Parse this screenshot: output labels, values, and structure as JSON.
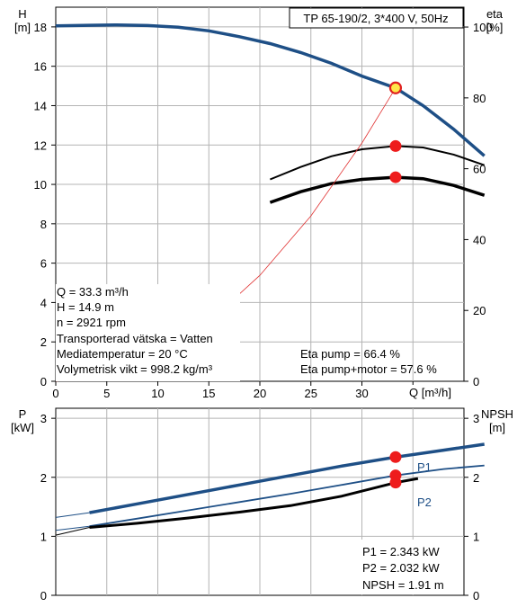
{
  "chart_data": [
    {
      "type": "line",
      "title": "TP 65-190/2, 3*400 V, 50Hz",
      "xlabel": "Q [m³/h]",
      "ylabel": "H",
      "ylabel_unit": "[m]",
      "y2label": "eta",
      "y2label_unit": "[%]",
      "xlim": [
        0,
        40
      ],
      "ylim": [
        0,
        19
      ],
      "y2lim": [
        0,
        100
      ],
      "x_ticks": [
        0,
        5,
        10,
        15,
        20,
        25,
        30,
        35
      ],
      "y_ticks": [
        0,
        2,
        4,
        6,
        8,
        10,
        12,
        14,
        16,
        18
      ],
      "y2_ticks": [
        0,
        20,
        40,
        60,
        80,
        100
      ],
      "grid": true,
      "series": [
        {
          "key": "H",
          "axis": "left",
          "color": "#1e4f86",
          "x": [
            0.0,
            3.3,
            6.0,
            9.0,
            12.0,
            15.0,
            18.0,
            21.0,
            24.0,
            27.0,
            30.0,
            33.3,
            36.0,
            39.0,
            42.0
          ],
          "y": [
            18.05,
            18.08,
            18.1,
            18.07,
            17.98,
            17.8,
            17.5,
            17.15,
            16.7,
            16.15,
            15.5,
            14.9,
            14.0,
            12.8,
            11.45
          ]
        },
        {
          "key": "eta_pump",
          "axis": "right",
          "color": "#000000",
          "x": [
            21.0,
            24.0,
            27.0,
            30.0,
            33.3,
            36.0,
            39.0,
            42.0
          ],
          "y": [
            57.0,
            60.5,
            63.5,
            65.5,
            66.4,
            66.0,
            64.0,
            61.0
          ]
        },
        {
          "key": "eta_motor",
          "axis": "right",
          "color": "#000000",
          "x": [
            21.0,
            24.0,
            27.0,
            30.0,
            33.3,
            36.0,
            39.0,
            42.0
          ],
          "y": [
            50.5,
            53.5,
            55.8,
            57.0,
            57.6,
            57.2,
            55.3,
            52.5
          ]
        },
        {
          "key": "system",
          "axis": "left",
          "color": "#e03030",
          "x": [
            0,
            5,
            10,
            15,
            20,
            25,
            30,
            33.3
          ],
          "y": [
            0.0,
            0.33,
            1.34,
            3.02,
            5.38,
            8.4,
            12.1,
            14.9
          ]
        }
      ],
      "operating_points": [
        {
          "axis": "left",
          "x": 33.3,
          "y": 14.9,
          "style": "duty"
        },
        {
          "axis": "right",
          "x": 33.3,
          "y": 66.4
        },
        {
          "axis": "right",
          "x": 33.3,
          "y": 57.6
        }
      ],
      "annotations": [
        "Q = 33.3 m³/h",
        "H = 14.9 m",
        "n = 2921 rpm",
        "Transporterad vätska = Vatten",
        "Mediatemperatur = 20 °C",
        "Volymetrisk vikt = 998.2 kg/m³"
      ],
      "eta_notes": [
        "Eta pump = 66.4 %",
        "Eta pump+motor = 57.6 %"
      ]
    },
    {
      "type": "line",
      "ylabel": "P",
      "ylabel_unit": "[kW]",
      "y2label": "NPSH",
      "y2label_unit": "[m]",
      "xlim": [
        0,
        40
      ],
      "ylim": [
        0,
        3.0
      ],
      "y2lim": [
        0,
        3.0
      ],
      "y_ticks": [
        0,
        1,
        2,
        3
      ],
      "y2_ticks": [
        0,
        1,
        2,
        3
      ],
      "grid": true,
      "series": [
        {
          "key": "P1",
          "name": "P1",
          "axis": "left",
          "color": "#1e4f86",
          "x": [
            3.3,
            8.0,
            13.0,
            18.0,
            23.0,
            28.0,
            33.3,
            38.0,
            42.0
          ],
          "y": [
            1.4,
            1.55,
            1.71,
            1.87,
            2.03,
            2.19,
            2.343,
            2.46,
            2.56
          ]
        },
        {
          "key": "P1_ext",
          "axis": "left",
          "color": "#1e4f86",
          "thin": true,
          "x": [
            0,
            3.3
          ],
          "y": [
            1.32,
            1.4
          ]
        },
        {
          "key": "P2",
          "name": "P2",
          "axis": "left",
          "color": "#1e4f86",
          "x": [
            3.3,
            8.0,
            13.0,
            18.0,
            23.0,
            28.0,
            33.3,
            38.0,
            42.0
          ],
          "y": [
            1.17,
            1.3,
            1.44,
            1.58,
            1.72,
            1.87,
            2.032,
            2.14,
            2.2
          ]
        },
        {
          "key": "P2_ext",
          "axis": "left",
          "color": "#1e4f86",
          "thin": true,
          "x": [
            0,
            3.3
          ],
          "y": [
            1.1,
            1.17
          ]
        },
        {
          "key": "NPSH",
          "axis": "right",
          "color": "#000000",
          "x": [
            3.3,
            8.0,
            13.0,
            18.0,
            23.0,
            28.0,
            33.3,
            35.5
          ],
          "y": [
            1.15,
            1.22,
            1.31,
            1.41,
            1.52,
            1.68,
            1.91,
            1.98
          ]
        },
        {
          "key": "NPSH_ext",
          "axis": "right",
          "color": "#000000",
          "thin": true,
          "x": [
            0,
            3.3
          ],
          "y": [
            1.02,
            1.15
          ]
        }
      ],
      "operating_points": [
        {
          "axis": "left",
          "x": 33.3,
          "y": 2.343
        },
        {
          "axis": "left",
          "x": 33.3,
          "y": 2.032
        },
        {
          "axis": "right",
          "x": 33.3,
          "y": 1.91
        }
      ],
      "annotations": [
        "P1 = 2.343 kW",
        "P2 = 2.032 kW",
        "NPSH = 1.91 m"
      ]
    }
  ]
}
